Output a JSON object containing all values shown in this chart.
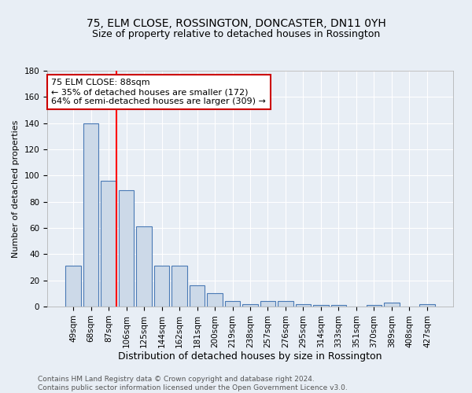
{
  "title": "75, ELM CLOSE, ROSSINGTON, DONCASTER, DN11 0YH",
  "subtitle": "Size of property relative to detached houses in Rossington",
  "xlabel": "Distribution of detached houses by size in Rossington",
  "ylabel": "Number of detached properties",
  "categories": [
    "49sqm",
    "68sqm",
    "87sqm",
    "106sqm",
    "125sqm",
    "144sqm",
    "162sqm",
    "181sqm",
    "200sqm",
    "219sqm",
    "238sqm",
    "257sqm",
    "276sqm",
    "295sqm",
    "314sqm",
    "333sqm",
    "351sqm",
    "370sqm",
    "389sqm",
    "408sqm",
    "427sqm"
  ],
  "values": [
    31,
    140,
    96,
    89,
    61,
    31,
    31,
    16,
    10,
    4,
    2,
    4,
    4,
    2,
    1,
    1,
    0,
    1,
    3,
    0,
    2
  ],
  "bar_color": "#ccd9e8",
  "bar_edge_color": "#4a7ab5",
  "red_line_index": 2,
  "annotation_text": "75 ELM CLOSE: 88sqm\n← 35% of detached houses are smaller (172)\n64% of semi-detached houses are larger (309) →",
  "annotation_box_color": "#ffffff",
  "annotation_box_edge_color": "#cc0000",
  "ylim": [
    0,
    180
  ],
  "yticks": [
    0,
    20,
    40,
    60,
    80,
    100,
    120,
    140,
    160,
    180
  ],
  "background_color": "#e8eef5",
  "plot_background_color": "#e8eef5",
  "footer_line1": "Contains HM Land Registry data © Crown copyright and database right 2024.",
  "footer_line2": "Contains public sector information licensed under the Open Government Licence v3.0.",
  "title_fontsize": 10,
  "xlabel_fontsize": 9,
  "ylabel_fontsize": 8,
  "tick_fontsize": 7.5,
  "annotation_fontsize": 8,
  "footer_fontsize": 6.5
}
